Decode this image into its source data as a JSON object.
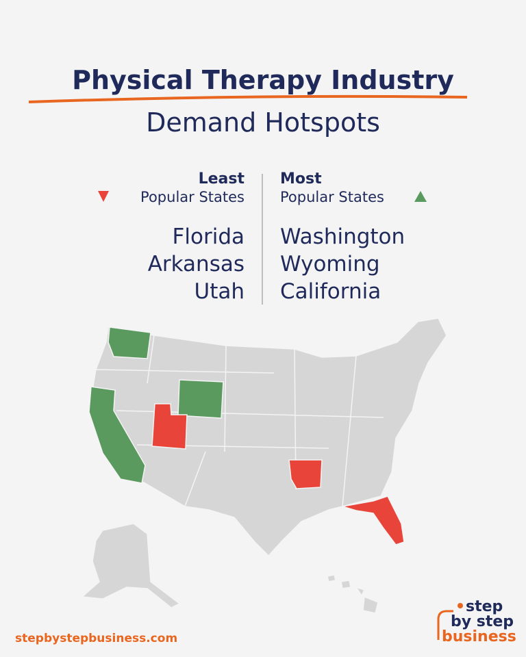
{
  "header": {
    "title": "Physical Therapy Industry",
    "subtitle": "Demand Hotspots"
  },
  "least": {
    "heading": "Least",
    "subheading": "Popular States",
    "states": [
      "Florida",
      "Arkansas",
      "Utah"
    ]
  },
  "most": {
    "heading": "Most",
    "subheading": "Popular States",
    "states": [
      "Washington",
      "Wyoming",
      "California"
    ]
  },
  "footer": {
    "url": "stepbystepbusiness.com",
    "logo": [
      "step",
      "by step",
      "business"
    ]
  }
}
